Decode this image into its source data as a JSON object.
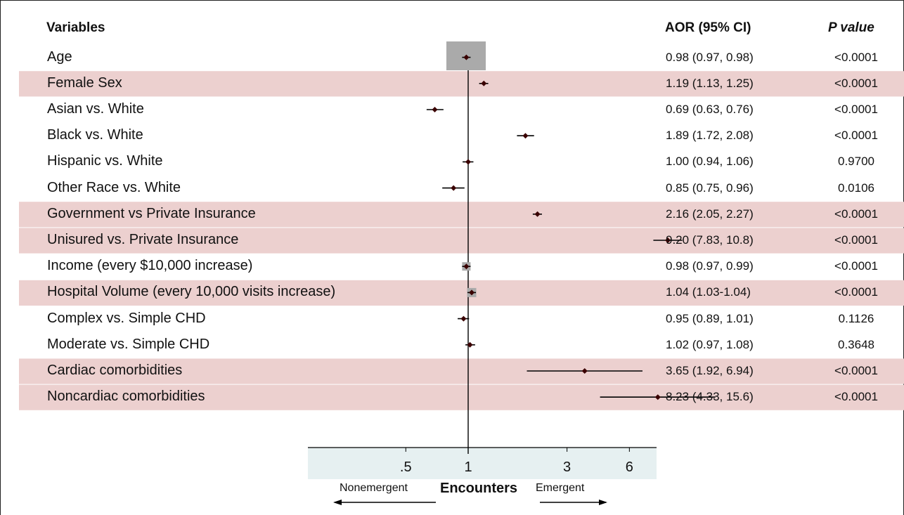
{
  "headers": {
    "variables": "Variables",
    "aor": "AOR (95%  CI)",
    "pvalue": "P value"
  },
  "axis": {
    "xlabel": "Encounters",
    "left_direction": "Nonemergent",
    "right_direction": "Emergent",
    "tick_labels": [
      ".5",
      "1",
      "3",
      "6"
    ],
    "scale": "log",
    "reference_line": 1
  },
  "colors": {
    "highlight_row": "#ecd0cf",
    "axis_band": "#e6f0f1",
    "marker": "#3a0000",
    "line": "#000000",
    "weight_box": "#aaaaaa"
  },
  "chart_data": {
    "type": "forest",
    "xlabel": "Encounters",
    "ticks": [
      0.5,
      1,
      3,
      6
    ],
    "rows": [
      {
        "variable": "Age",
        "aor": 0.98,
        "lo": 0.97,
        "hi": 0.98,
        "aor_text": "0.98 (0.97, 0.98)",
        "p_text": "<0.0001",
        "highlight": false
      },
      {
        "variable": "Female  Sex",
        "aor": 1.19,
        "lo": 1.13,
        "hi": 1.25,
        "aor_text": "1.19 (1.13, 1.25)",
        "p_text": "<0.0001",
        "highlight": true
      },
      {
        "variable": "Asian vs. White",
        "aor": 0.69,
        "lo": 0.63,
        "hi": 0.76,
        "aor_text": "0.69 (0.63, 0.76)",
        "p_text": "<0.0001",
        "highlight": false
      },
      {
        "variable": "Black vs. White",
        "aor": 1.89,
        "lo": 1.72,
        "hi": 2.08,
        "aor_text": "1.89 (1.72, 2.08)",
        "p_text": "<0.0001",
        "highlight": false
      },
      {
        "variable": "Hispanic vs. White",
        "aor": 1.0,
        "lo": 0.94,
        "hi": 1.06,
        "aor_text": "1.00 (0.94, 1.06)",
        "p_text": "0.9700",
        "highlight": false
      },
      {
        "variable": "Other Race vs. White",
        "aor": 0.85,
        "lo": 0.75,
        "hi": 0.96,
        "aor_text": "0.85 (0.75, 0.96)",
        "p_text": "0.0106",
        "highlight": false
      },
      {
        "variable": "Government vs Private Insurance",
        "aor": 2.16,
        "lo": 2.05,
        "hi": 2.27,
        "aor_text": "2.16 (2.05, 2.27)",
        "p_text": "<0.0001",
        "highlight": true
      },
      {
        "variable": "Unisured vs. Private Insurance",
        "aor": 9.2,
        "lo": 7.83,
        "hi": 10.8,
        "aor_text": "9.20 (7.83, 10.8)",
        "p_text": "<0.0001",
        "highlight": true
      },
      {
        "variable": "Income (every $10,000 increase)",
        "aor": 0.98,
        "lo": 0.97,
        "hi": 0.99,
        "aor_text": "0.98 (0.97, 0.99)",
        "p_text": "<0.0001",
        "highlight": false
      },
      {
        "variable": "Hospital Volume (every 10,000 visits increase)",
        "aor": 1.04,
        "lo": 1.03,
        "hi": 1.04,
        "aor_text": "1.04 (1.03-1.04)",
        "p_text": "<0.0001",
        "highlight": true
      },
      {
        "variable": "Complex vs. Simple CHD",
        "aor": 0.95,
        "lo": 0.89,
        "hi": 1.01,
        "aor_text": "0.95 (0.89, 1.01)",
        "p_text": "0.1126",
        "highlight": false
      },
      {
        "variable": "Moderate vs. Simple CHD",
        "aor": 1.02,
        "lo": 0.97,
        "hi": 1.08,
        "aor_text": "1.02 (0.97, 1.08)",
        "p_text": "0.3648",
        "highlight": false
      },
      {
        "variable": "Cardiac comorbidities",
        "aor": 3.65,
        "lo": 1.92,
        "hi": 6.94,
        "aor_text": "3.65 (1.92, 6.94)",
        "p_text": "<0.0001",
        "highlight": true
      },
      {
        "variable": "Noncardiac comorbidities",
        "aor": 8.23,
        "lo": 4.33,
        "hi": 15.6,
        "aor_text": "8.23 (4.33, 15.6)",
        "p_text": "<0.0001",
        "highlight": true
      }
    ]
  }
}
